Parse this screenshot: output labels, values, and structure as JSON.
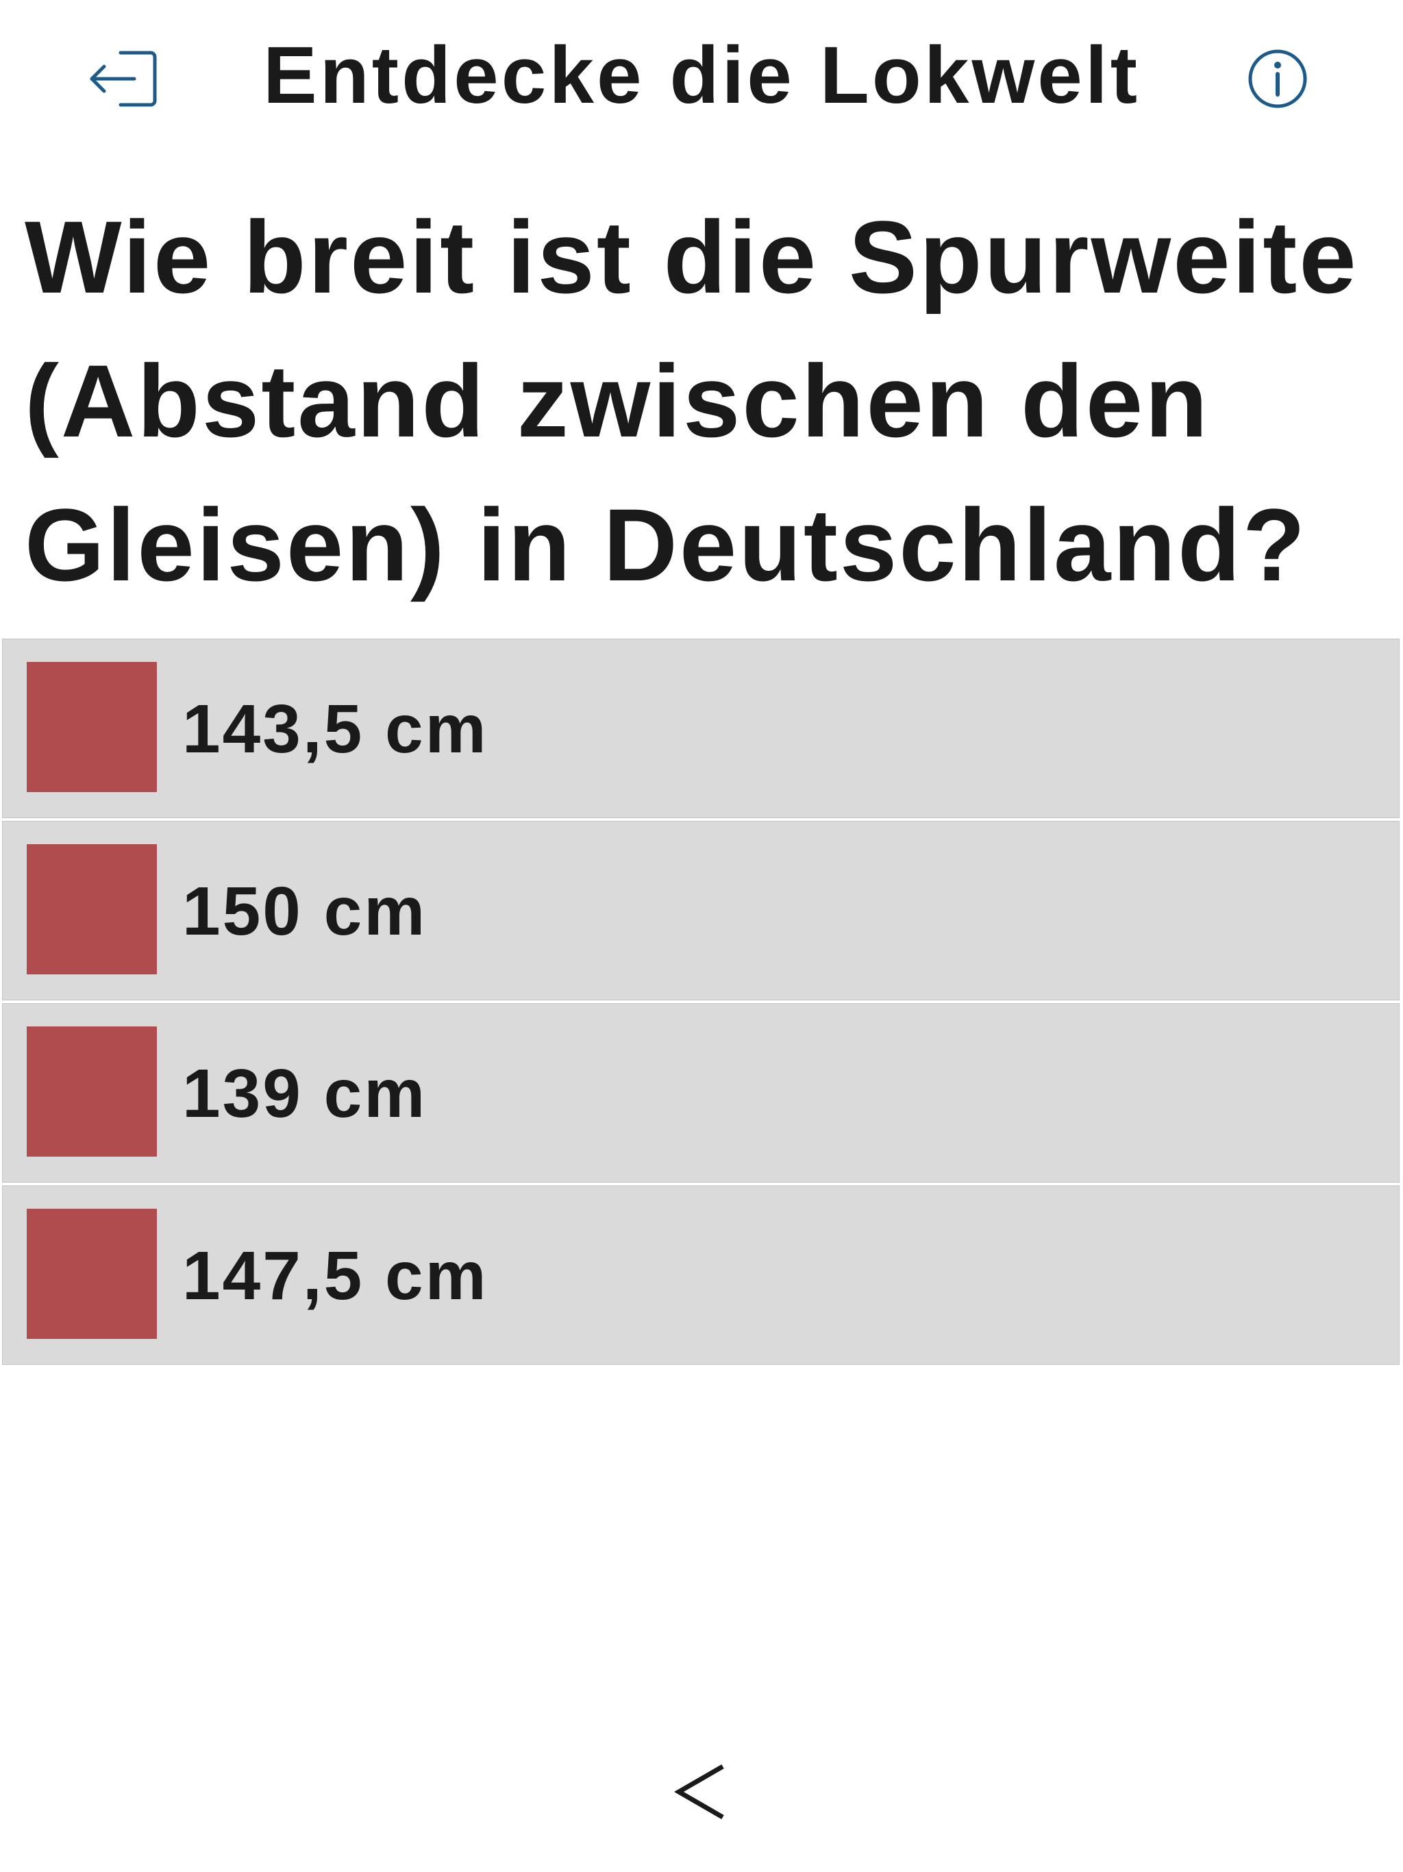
{
  "header": {
    "title": "Entdecke die Lokwelt",
    "back_icon": "logout-icon",
    "info_icon": "info-icon",
    "icon_color": "#1c5a8a"
  },
  "question": {
    "text": "Wie breit ist die Spurweite (Abstand zwischen den Gleisen) in Deutschland?"
  },
  "answers": [
    {
      "label": "143,5 cm"
    },
    {
      "label": "150 cm"
    },
    {
      "label": "139 cm"
    },
    {
      "label": "147,5 cm"
    }
  ],
  "colors": {
    "answer_background": "#dadada",
    "checkbox": "#b04c4d",
    "text": "#1a1a1a"
  },
  "footer": {
    "prev_label": "<",
    "prev_icon": "chevron-left-icon"
  }
}
